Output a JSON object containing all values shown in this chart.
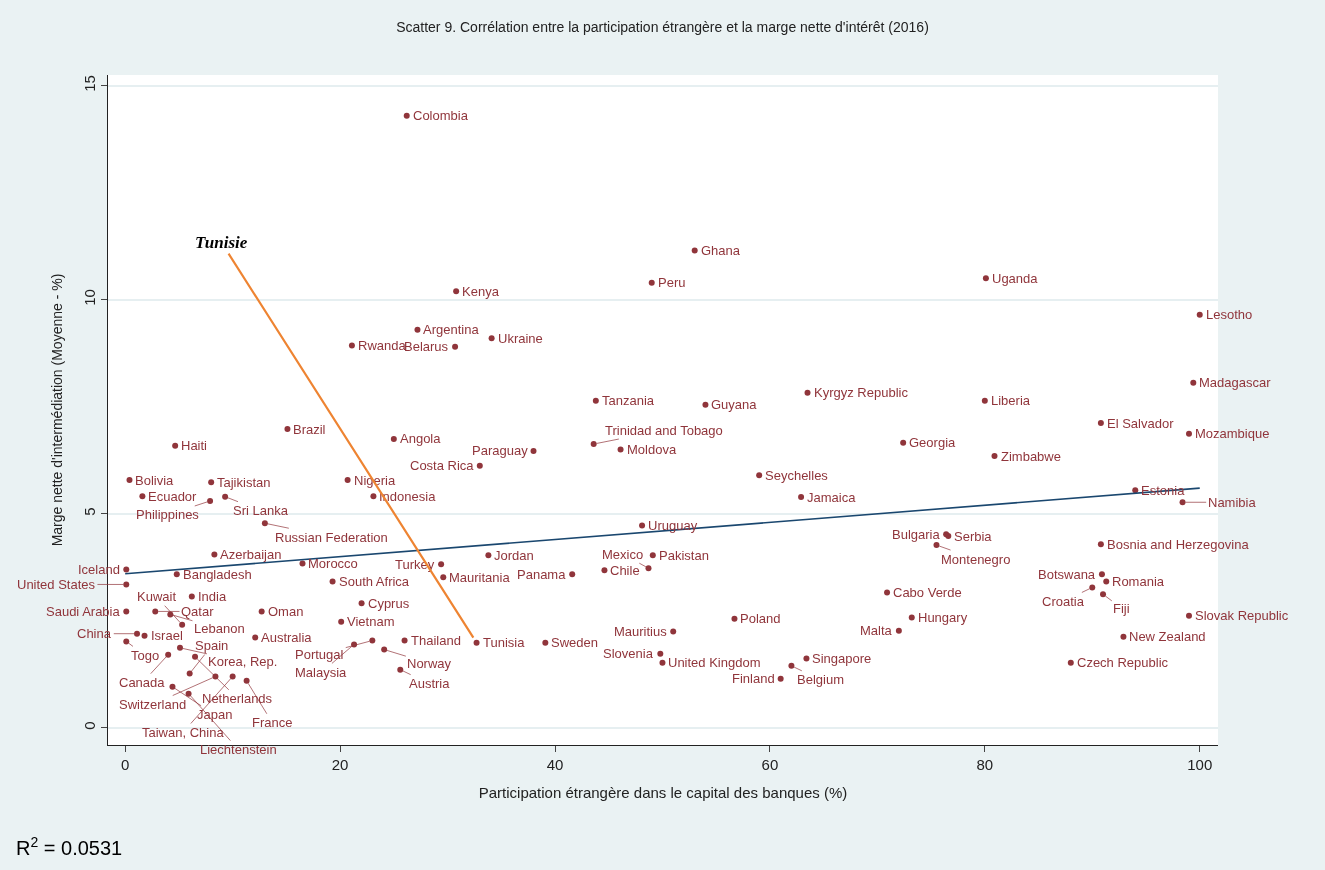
{
  "chart_data": {
    "type": "scatter",
    "title": "Scatter 9. Corrélation entre la participation étrangère et la marge nette d'intérêt (2016)",
    "xlabel": "Participation étrangère dans le capital des banques (%)",
    "ylabel": "Marge nette d'intermédiation (Moyenne - %)",
    "xlim": [
      -1.6,
      101.7
    ],
    "ylim": [
      -0.4,
      15.25
    ],
    "xticks": [
      0,
      20,
      40,
      60,
      80,
      100
    ],
    "yticks": [
      0,
      5,
      10,
      15
    ],
    "grid": "y",
    "marker": "circle",
    "series": [
      {
        "type": "scatter",
        "color": "#90353b",
        "x": [
          26.2,
          53.0,
          49.0,
          80.1,
          30.8,
          100,
          27.2,
          34.1,
          21.1,
          30.7,
          99.4,
          63.5,
          43.8,
          80.0,
          54.0,
          90.8,
          15.1,
          99.0,
          25.0,
          4.65,
          43.6,
          72.4,
          38.0,
          46.1,
          80.9,
          33.0,
          59.0,
          0.4,
          8.0,
          20.7,
          1.6,
          9.3,
          7.9,
          23.1,
          62.9,
          94.0,
          98.4,
          13.0,
          48.1,
          76.4,
          76.6,
          75.5,
          90.8,
          8.3,
          33.8,
          49.1,
          16.5,
          29.4,
          0.1,
          4.8,
          44.6,
          48.7,
          41.6,
          29.6,
          90.9,
          91.3,
          19.3,
          0.1,
          90.0,
          91.0,
          70.9,
          6.2,
          22.0,
          12.7,
          0.1,
          2.8,
          4.2,
          5.3,
          73.2,
          56.7,
          99.0,
          20.1,
          72.0,
          51.0,
          1.1,
          1.8,
          12.1,
          92.9,
          0.1,
          32.7,
          39.1,
          26.0,
          23.0,
          21.3,
          24.1,
          5.1,
          4.0,
          6.5,
          49.8,
          50.0,
          63.4,
          62.0,
          88.0,
          25.6,
          6.0,
          8.4,
          11.3,
          10.0,
          61.0,
          4.4,
          5.9
        ],
        "values": [
          14.3,
          11.15,
          10.4,
          10.5,
          10.2,
          9.65,
          9.3,
          9.1,
          8.93,
          8.9,
          8.06,
          7.83,
          7.64,
          7.64,
          7.55,
          7.12,
          6.98,
          6.87,
          6.75,
          6.59,
          6.63,
          6.66,
          6.47,
          6.5,
          6.35,
          6.12,
          5.9,
          5.79,
          5.74,
          5.79,
          5.41,
          5.4,
          5.3,
          5.41,
          5.39,
          5.55,
          5.27,
          4.78,
          4.73,
          4.52,
          4.48,
          4.27,
          4.29,
          4.05,
          4.03,
          4.03,
          3.84,
          3.82,
          3.7,
          3.59,
          3.68,
          3.73,
          3.59,
          3.52,
          3.59,
          3.42,
          3.42,
          3.35,
          3.28,
          3.12,
          3.16,
          3.07,
          2.91,
          2.72,
          2.72,
          2.72,
          2.65,
          2.41,
          2.58,
          2.55,
          2.62,
          2.48,
          2.27,
          2.25,
          2.2,
          2.15,
          2.11,
          2.13,
          2.02,
          1.99,
          1.99,
          2.04,
          2.04,
          1.95,
          1.83,
          1.87,
          1.71,
          1.66,
          1.73,
          1.52,
          1.62,
          1.45,
          1.52,
          1.36,
          1.27,
          1.2,
          1.1,
          1.2,
          1.15,
          0.96,
          0.8
        ]
      },
      {
        "type": "line",
        "color": "#1a476f",
        "x": [
          0,
          100
        ],
        "values": [
          3.6,
          5.6
        ],
        "marker": "none"
      }
    ],
    "annotations": [
      {
        "text": "Colombia",
        "x": 26.2,
        "y": 14.3
      },
      {
        "text": "Ghana",
        "x": 53.0,
        "y": 11.15
      },
      {
        "text": "Peru",
        "x": 49.0,
        "y": 10.4
      },
      {
        "text": "Uganda",
        "x": 80.1,
        "y": 10.5
      },
      {
        "text": "Kenya",
        "x": 30.8,
        "y": 10.2
      },
      {
        "text": "Lesotho",
        "x": 100,
        "y": 9.65
      },
      {
        "text": "Argentina",
        "x": 27.2,
        "y": 9.3
      },
      {
        "text": "Ukraine",
        "x": 34.1,
        "y": 9.1
      },
      {
        "text": "Rwanda",
        "x": 21.1,
        "y": 8.93
      },
      {
        "text": "Belarus",
        "x": 30.7,
        "y": 8.9
      },
      {
        "text": "Madagascar",
        "x": 99.4,
        "y": 8.06
      },
      {
        "text": "Kyrgyz Republic",
        "x": 63.5,
        "y": 7.83
      },
      {
        "text": "Tanzania",
        "x": 43.8,
        "y": 7.64
      },
      {
        "text": "Liberia",
        "x": 80.0,
        "y": 7.64
      },
      {
        "text": "Guyana",
        "x": 54.0,
        "y": 7.55
      },
      {
        "text": "El Salvador",
        "x": 90.8,
        "y": 7.12
      },
      {
        "text": "Brazil",
        "x": 15.1,
        "y": 6.98
      },
      {
        "text": "Mozambique",
        "x": 99.0,
        "y": 6.87
      },
      {
        "text": "Angola",
        "x": 25.0,
        "y": 6.75
      },
      {
        "text": "Haiti",
        "x": 4.65,
        "y": 6.59
      },
      {
        "text": "Trinidad and Tobago",
        "x": 43.6,
        "y": 6.63
      },
      {
        "text": "Georgia",
        "x": 72.4,
        "y": 6.66
      },
      {
        "text": "Paraguay",
        "x": 38.0,
        "y": 6.47
      },
      {
        "text": "Moldova",
        "x": 46.1,
        "y": 6.5
      },
      {
        "text": "Zimbabwe",
        "x": 80.9,
        "y": 6.35
      },
      {
        "text": "Costa Rica",
        "x": 33.0,
        "y": 6.12
      },
      {
        "text": "Seychelles",
        "x": 59.0,
        "y": 5.9
      },
      {
        "text": "Bolivia",
        "x": 0.4,
        "y": 5.79
      },
      {
        "text": "Tajikistan",
        "x": 8.0,
        "y": 5.74
      },
      {
        "text": "Nigeria",
        "x": 20.7,
        "y": 5.79
      },
      {
        "text": "Ecuador",
        "x": 1.6,
        "y": 5.41
      },
      {
        "text": "Sri Lanka",
        "x": 9.3,
        "y": 5.4
      },
      {
        "text": "Philippines",
        "x": 7.9,
        "y": 5.3
      },
      {
        "text": "Indonesia",
        "x": 23.1,
        "y": 5.41
      },
      {
        "text": "Jamaica",
        "x": 62.9,
        "y": 5.39
      },
      {
        "text": "Estonia",
        "x": 94.0,
        "y": 5.55
      },
      {
        "text": "Namibia",
        "x": 98.4,
        "y": 5.27
      },
      {
        "text": "Russian Federation",
        "x": 13.0,
        "y": 4.78
      },
      {
        "text": "Uruguay",
        "x": 48.1,
        "y": 4.73
      },
      {
        "text": "Bulgaria",
        "x": 76.4,
        "y": 4.52
      },
      {
        "text": "Serbia",
        "x": 76.6,
        "y": 4.48
      },
      {
        "text": "Montenegro",
        "x": 75.5,
        "y": 4.27
      },
      {
        "text": "Bosnia and Herzegovina",
        "x": 90.8,
        "y": 4.29
      },
      {
        "text": "Azerbaijan",
        "x": 8.3,
        "y": 4.05
      },
      {
        "text": "Jordan",
        "x": 33.8,
        "y": 4.03
      },
      {
        "text": "Pakistan",
        "x": 49.1,
        "y": 4.03
      },
      {
        "text": "Morocco",
        "x": 16.5,
        "y": 3.84
      },
      {
        "text": "Turkey",
        "x": 29.4,
        "y": 3.82
      },
      {
        "text": "Iceland",
        "x": 0.1,
        "y": 3.7
      },
      {
        "text": "Bangladesh",
        "x": 4.8,
        "y": 3.59
      },
      {
        "text": "Chile",
        "x": 44.6,
        "y": 3.68
      },
      {
        "text": "Mexico",
        "x": 48.7,
        "y": 3.73
      },
      {
        "text": "Panama",
        "x": 41.6,
        "y": 3.59
      },
      {
        "text": "Mauritania",
        "x": 29.6,
        "y": 3.52
      },
      {
        "text": "Botswana",
        "x": 90.9,
        "y": 3.59
      },
      {
        "text": "Romania",
        "x": 91.3,
        "y": 3.42
      },
      {
        "text": "South Africa",
        "x": 19.3,
        "y": 3.42
      },
      {
        "text": "United States",
        "x": 0.1,
        "y": 3.35
      },
      {
        "text": "Croatia",
        "x": 90.0,
        "y": 3.28
      },
      {
        "text": "Fiji",
        "x": 91.0,
        "y": 3.12
      },
      {
        "text": "Cabo Verde",
        "x": 70.9,
        "y": 3.16
      },
      {
        "text": "India",
        "x": 6.2,
        "y": 3.07
      },
      {
        "text": "Cyprus",
        "x": 22.0,
        "y": 2.91
      },
      {
        "text": "Oman",
        "x": 12.7,
        "y": 2.72
      },
      {
        "text": "Saudi Arabia",
        "x": 0.1,
        "y": 2.72
      },
      {
        "text": "Qatar",
        "x": 2.8,
        "y": 2.72
      },
      {
        "text": "Lebanon",
        "x": 4.2,
        "y": 2.65
      },
      {
        "text": "Kuwait",
        "x": 5.3,
        "y": 2.41
      },
      {
        "text": "Hungary",
        "x": 73.2,
        "y": 2.58
      },
      {
        "text": "Poland",
        "x": 56.7,
        "y": 2.55
      },
      {
        "text": "Slovak Republic",
        "x": 99.0,
        "y": 2.62
      },
      {
        "text": "Vietnam",
        "x": 20.1,
        "y": 2.48
      },
      {
        "text": "Malta",
        "x": 72.0,
        "y": 2.27
      },
      {
        "text": "Mauritius",
        "x": 51.0,
        "y": 2.25
      },
      {
        "text": "China",
        "x": 1.1,
        "y": 2.2
      },
      {
        "text": "Israel",
        "x": 1.8,
        "y": 2.15
      },
      {
        "text": "Australia",
        "x": 12.1,
        "y": 2.11
      },
      {
        "text": "New Zealand",
        "x": 92.9,
        "y": 2.13
      },
      {
        "text": "Togo",
        "x": 0.1,
        "y": 2.02
      },
      {
        "text": "Tunisia",
        "x": 32.7,
        "y": 1.99
      },
      {
        "text": "Sweden",
        "x": 39.1,
        "y": 1.99
      },
      {
        "text": "Thailand",
        "x": 26.0,
        "y": 2.04
      },
      {
        "text": "Portugal",
        "x": 23.0,
        "y": 2.04
      },
      {
        "text": "Malaysia",
        "x": 21.3,
        "y": 1.95
      },
      {
        "text": "Norway",
        "x": 24.1,
        "y": 1.83
      },
      {
        "text": "Korea, Rep.",
        "x": 5.1,
        "y": 1.87
      },
      {
        "text": "Canada",
        "x": 4.0,
        "y": 1.71
      },
      {
        "text": "Netherlands",
        "x": 6.5,
        "y": 1.66
      },
      {
        "text": "Slovenia",
        "x": 49.8,
        "y": 1.73
      },
      {
        "text": "United Kingdom",
        "x": 50.0,
        "y": 1.52
      },
      {
        "text": "Singapore",
        "x": 63.4,
        "y": 1.62
      },
      {
        "text": "Belgium",
        "x": 62.0,
        "y": 1.45
      },
      {
        "text": "Czech Republic",
        "x": 88.0,
        "y": 1.52
      },
      {
        "text": "Austria",
        "x": 25.6,
        "y": 1.36
      },
      {
        "text": "Spain",
        "x": 6.0,
        "y": 1.27
      },
      {
        "text": "Switzerland",
        "x": 8.4,
        "y": 1.2
      },
      {
        "text": "France",
        "x": 11.3,
        "y": 1.1
      },
      {
        "text": "Taiwan, China",
        "x": 10.0,
        "y": 1.2
      },
      {
        "text": "Finland",
        "x": 61.0,
        "y": 1.15
      },
      {
        "text": "Japan",
        "x": 4.4,
        "y": 0.96
      },
      {
        "text": "Liechtenstein",
        "x": 5.9,
        "y": 0.8
      },
      {
        "text": "Tunisie",
        "x": 32.7,
        "y": 1.99
      },
      "R$^{2}$ = 0.0531"
    ]
  }
}
